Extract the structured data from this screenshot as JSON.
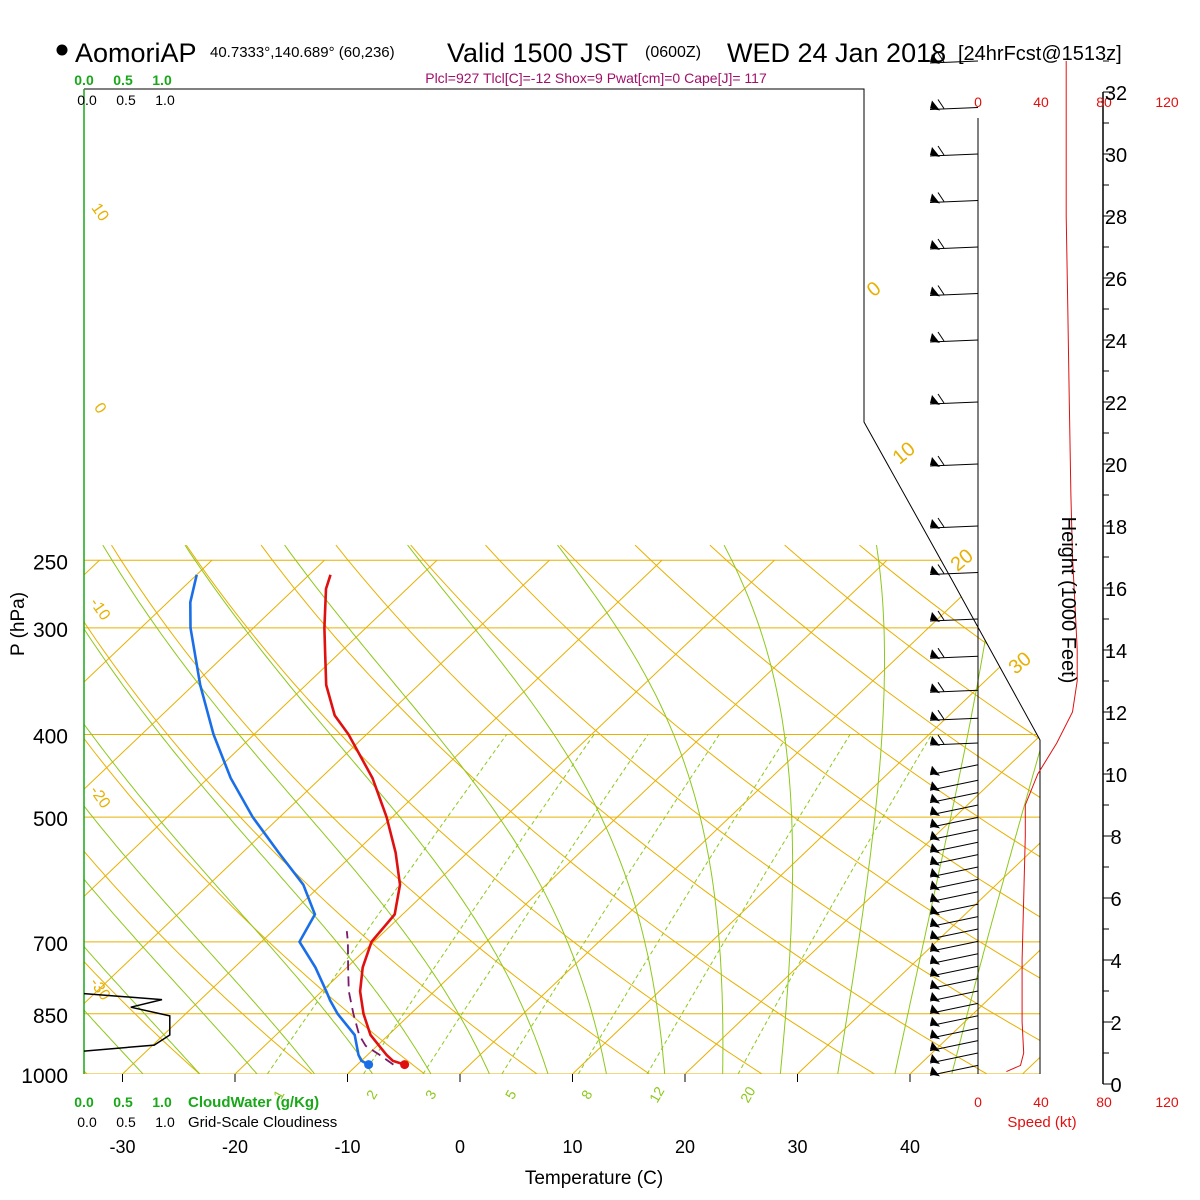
{
  "header": {
    "station": "AomoriAP",
    "coords": "40.7333°,140.689° (60,236)",
    "valid_a": "Valid 1500 JST",
    "valid_z": "(0600Z)",
    "date": "WED 24 Jan 2018",
    "fcst": "[24hrFcst@1513z]",
    "indices": "Plcl=927 Tlcl[C]=-12 Shox=9 Pwat[cm]=0 Cape[J]= 117"
  },
  "colors": {
    "temp": "#e01010",
    "dewpoint": "#1a6fe8",
    "parcel": "#7a1a6a",
    "isotherm": "#e8b000",
    "dry_adiabat": "#e8b000",
    "moist_adiabat": "#8cc81a",
    "mixing_ratio": "#8cc81a",
    "cloud": "#18a818",
    "speed": "#e01010",
    "indices": "#a0106a"
  },
  "chart_data": {
    "type": "skew-t",
    "xlabel": "Temperature (C)",
    "ylabel": "P (hPa)",
    "height_label": "Height (1000 Feet)",
    "speed_label": "Speed (kt)",
    "cloudwater_label": "CloudWater (g/Kg)",
    "cloudiness_label": "Grid-Scale Cloudiness",
    "pressure_ticks": [
      250,
      300,
      400,
      500,
      700,
      850,
      1000
    ],
    "pressure_range": [
      250,
      1000
    ],
    "temp_ticks": [
      -30,
      -20,
      -10,
      0,
      10,
      20,
      30,
      40
    ],
    "height_ticks": [
      0,
      2,
      4,
      6,
      8,
      10,
      12,
      14,
      16,
      18,
      20,
      22,
      24,
      26,
      28,
      30,
      32
    ],
    "speed_ticks": [
      "0",
      "40",
      "80",
      "120"
    ],
    "cloud_ticks": [
      "0.0",
      "0.5",
      "1.0"
    ],
    "dry_adiabat_labels": [
      "10",
      "0",
      "-10",
      "-20",
      "-30"
    ],
    "moist_labels": [
      "0",
      "10",
      "20",
      "30"
    ],
    "mixing_ratio_labels": [
      "1",
      "2",
      "3",
      "5",
      "8",
      "12",
      "20"
    ],
    "temperature_profile": [
      {
        "p": 975,
        "t": -5.8
      },
      {
        "p": 965,
        "t": -7.2
      },
      {
        "p": 950,
        "t": -8.3
      },
      {
        "p": 900,
        "t": -11.6
      },
      {
        "p": 850,
        "t": -14.2
      },
      {
        "p": 800,
        "t": -16.6
      },
      {
        "p": 750,
        "t": -18.6
      },
      {
        "p": 700,
        "t": -20.2
      },
      {
        "p": 650,
        "t": -20.7
      },
      {
        "p": 600,
        "t": -23.0
      },
      {
        "p": 550,
        "t": -26.4
      },
      {
        "p": 500,
        "t": -30.5
      },
      {
        "p": 450,
        "t": -35.4
      },
      {
        "p": 400,
        "t": -41.6
      },
      {
        "p": 380,
        "t": -44.6
      },
      {
        "p": 350,
        "t": -48.2
      },
      {
        "p": 320,
        "t": -51.4
      },
      {
        "p": 300,
        "t": -53.7
      },
      {
        "p": 270,
        "t": -57.2
      },
      {
        "p": 260,
        "t": -58.1
      }
    ],
    "dewpoint_profile": [
      {
        "p": 975,
        "t": -9.0
      },
      {
        "p": 965,
        "t": -10.0
      },
      {
        "p": 950,
        "t": -10.8
      },
      {
        "p": 900,
        "t": -13.0
      },
      {
        "p": 850,
        "t": -16.5
      },
      {
        "p": 820,
        "t": -18.4
      },
      {
        "p": 800,
        "t": -19.6
      },
      {
        "p": 750,
        "t": -22.8
      },
      {
        "p": 700,
        "t": -26.6
      },
      {
        "p": 650,
        "t": -27.8
      },
      {
        "p": 600,
        "t": -31.6
      },
      {
        "p": 550,
        "t": -36.8
      },
      {
        "p": 500,
        "t": -42.4
      },
      {
        "p": 450,
        "t": -48.0
      },
      {
        "p": 400,
        "t": -53.6
      },
      {
        "p": 350,
        "t": -59.4
      },
      {
        "p": 300,
        "t": -65.6
      },
      {
        "p": 280,
        "t": -68.0
      },
      {
        "p": 260,
        "t": -70.0
      }
    ],
    "parcel_profile": [
      {
        "p": 975,
        "t": -6.8
      },
      {
        "p": 950,
        "t": -8.9
      },
      {
        "p": 927,
        "t": -11.0
      },
      {
        "p": 900,
        "t": -12.6
      },
      {
        "p": 850,
        "t": -15.1
      },
      {
        "p": 800,
        "t": -17.6
      },
      {
        "p": 750,
        "t": -19.9
      },
      {
        "p": 700,
        "t": -22.3
      },
      {
        "p": 680,
        "t": -23.4
      }
    ],
    "cloud_profile": [
      {
        "p": 805,
        "v": 0.0
      },
      {
        "p": 818,
        "v": 1.0
      },
      {
        "p": 835,
        "v": 0.6
      },
      {
        "p": 855,
        "v": 1.1
      },
      {
        "p": 900,
        "v": 1.1
      },
      {
        "p": 925,
        "v": 0.9
      },
      {
        "p": 940,
        "v": 0.0
      }
    ],
    "speed_profile": [
      {
        "z": 0.4,
        "v": 18
      },
      {
        "z": 0.6,
        "v": 27
      },
      {
        "z": 1.0,
        "v": 29
      },
      {
        "z": 2.0,
        "v": 28
      },
      {
        "z": 4.0,
        "v": 28
      },
      {
        "z": 6.0,
        "v": 29
      },
      {
        "z": 8.0,
        "v": 30
      },
      {
        "z": 9.0,
        "v": 30
      },
      {
        "z": 10.0,
        "v": 38
      },
      {
        "z": 11.0,
        "v": 50
      },
      {
        "z": 12.0,
        "v": 60
      },
      {
        "z": 13.0,
        "v": 63
      },
      {
        "z": 14.0,
        "v": 63
      },
      {
        "z": 15.0,
        "v": 62
      },
      {
        "z": 17.0,
        "v": 60
      },
      {
        "z": 19.0,
        "v": 59
      },
      {
        "z": 22.0,
        "v": 58
      },
      {
        "z": 25.0,
        "v": 57
      },
      {
        "z": 28.0,
        "v": 56
      },
      {
        "z": 31.0,
        "v": 56
      },
      {
        "z": 33.0,
        "v": 56
      }
    ],
    "wind_barb_heights": [
      33,
      31.5,
      30,
      28.5,
      27,
      25.5,
      24,
      22,
      20,
      18,
      16.5,
      15,
      13.8,
      12.7,
      11.8,
      11,
      10.3,
      9.8,
      9.4,
      9.0,
      8.6,
      8.2,
      7.8,
      7.4,
      7.0,
      6.6,
      6.2,
      5.8,
      5.4,
      5.0,
      4.6,
      4.2,
      3.8,
      3.4,
      3.0,
      2.6,
      2.2,
      1.8,
      1.4,
      1.0,
      0.6
    ]
  }
}
